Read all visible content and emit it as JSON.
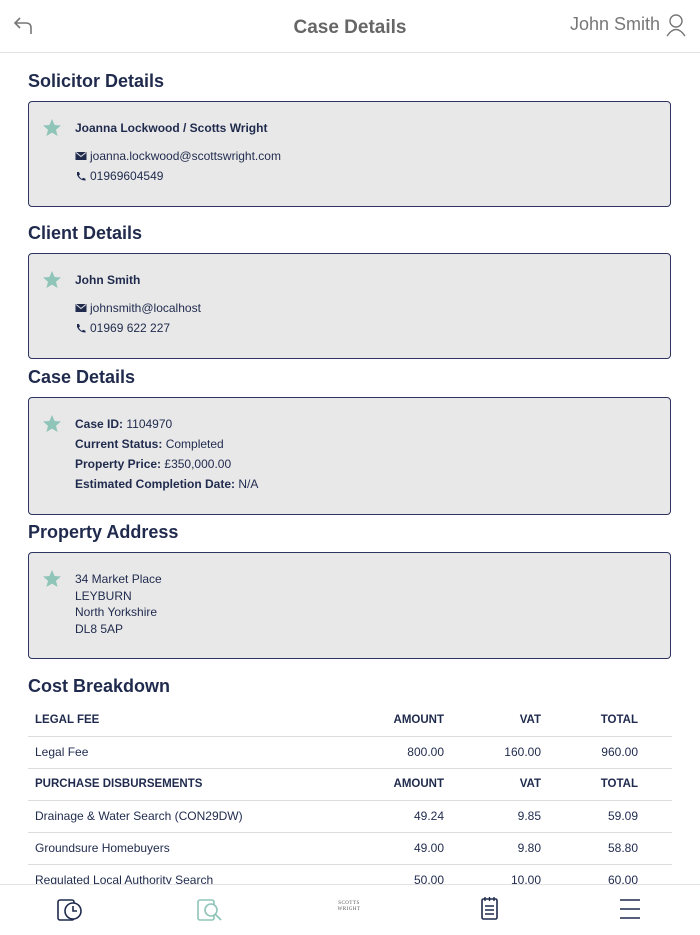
{
  "header": {
    "title": "Case Details",
    "user": "John Smith"
  },
  "solicitor": {
    "heading": "Solicitor Details",
    "name": "Joanna Lockwood / Scotts Wright",
    "email": "joanna.lockwood@scottswright.com",
    "phone": "01969604549"
  },
  "client": {
    "heading": "Client Details",
    "name": "John Smith",
    "email": "johnsmith@localhost",
    "phone": "01969 622 227"
  },
  "case": {
    "heading": "Case Details",
    "fields": [
      {
        "label": "Case ID:",
        "value": "1104970"
      },
      {
        "label": "Current Status:",
        "value": "Completed"
      },
      {
        "label": "Property Price:",
        "value": "£350,000.00"
      },
      {
        "label": "Estimated Completion Date:",
        "value": "N/A"
      }
    ]
  },
  "address": {
    "heading": "Property Address",
    "lines": [
      "34 Market Place",
      "LEYBURN",
      "North Yorkshire",
      "DL8 5AP"
    ]
  },
  "cost": {
    "heading": "Cost Breakdown",
    "groups": [
      {
        "header": [
          "LEGAL FEE",
          "AMOUNT",
          "VAT",
          "TOTAL"
        ],
        "rows": [
          [
            "Legal Fee",
            "800.00",
            "160.00",
            "960.00"
          ]
        ]
      },
      {
        "header": [
          "PURCHASE DISBURSEMENTS",
          "AMOUNT",
          "VAT",
          "TOTAL"
        ],
        "rows": [
          [
            "Drainage & Water Search (CON29DW)",
            "49.24",
            "9.85",
            "59.09"
          ],
          [
            "Groundsure Homebuyers",
            "49.00",
            "9.80",
            "58.80"
          ],
          [
            "Regulated Local Authority Search",
            "50.00",
            "10.00",
            "60.00"
          ]
        ]
      }
    ]
  },
  "nav": {
    "logo": [
      "SCOTTS",
      "WRIGHT"
    ]
  }
}
